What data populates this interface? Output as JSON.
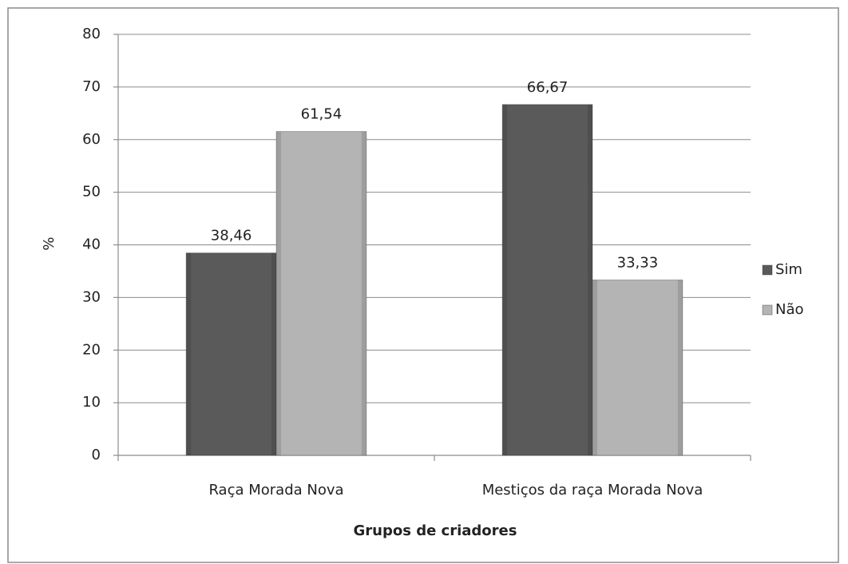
{
  "chart_data": {
    "type": "bar",
    "xlabel": "Grupos de criadores",
    "ylabel": "%",
    "categories": [
      "Raça Morada Nova",
      "Mestiços da raça Morada Nova"
    ],
    "series": [
      {
        "name": "Sim",
        "color": "#5a5a5a",
        "values": [
          38.46,
          66.67
        ],
        "value_labels": [
          "38,46",
          "66,67"
        ]
      },
      {
        "name": "Não",
        "color": "#b4b4b4",
        "values": [
          61.54,
          33.33
        ],
        "value_labels": [
          "61,54",
          "33,33"
        ]
      }
    ],
    "ylim": [
      0,
      80
    ],
    "yticks": [
      0,
      10,
      20,
      30,
      40,
      50,
      60,
      70,
      80
    ],
    "grid": true,
    "legend": "right"
  }
}
